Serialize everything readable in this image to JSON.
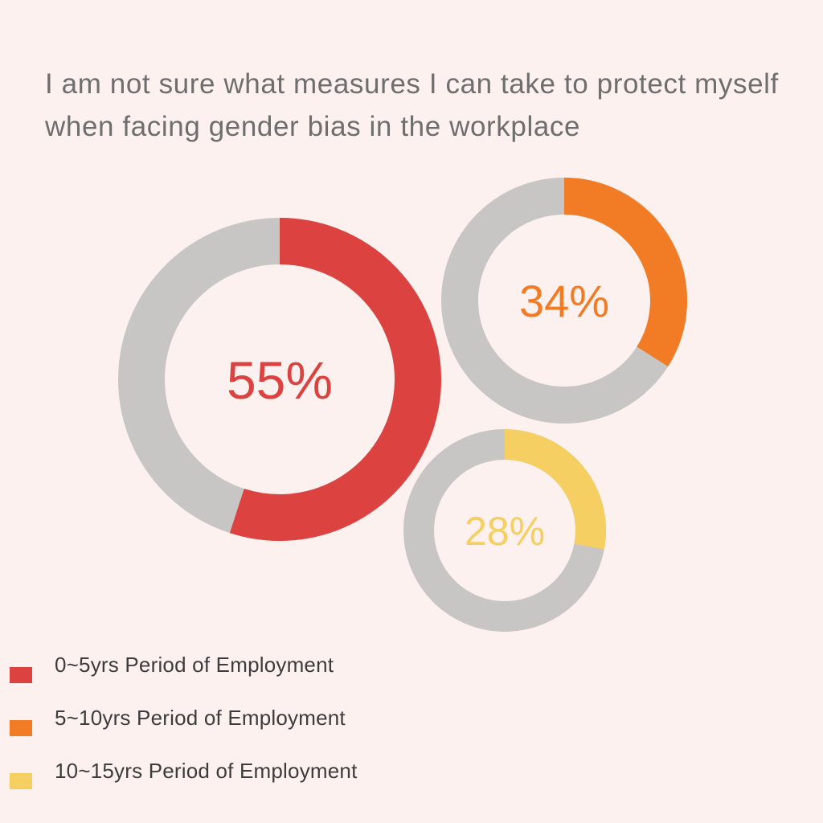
{
  "chart_data": {
    "type": "pie",
    "title": "I am not sure what measures I can take to protect myself when facing gender bias in the workplace",
    "series": [
      {
        "name": "0~5yrs Period of Employment",
        "value": 55,
        "label": "55%",
        "color": "#dc4340"
      },
      {
        "name": "5~10yrs Period of Employment",
        "value": 34,
        "label": "34%",
        "color": "#f27b25"
      },
      {
        "name": "10~15yrs Period of Employment",
        "value": 28,
        "label": "28%",
        "color": "#f5cf62"
      }
    ],
    "remainder_color": "#c8c6c4",
    "legend_position": "bottom-left"
  }
}
